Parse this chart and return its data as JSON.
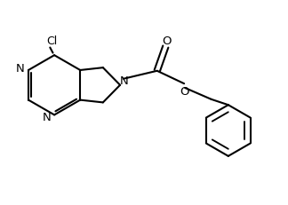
{
  "bg_color": "#ffffff",
  "line_color": "#000000",
  "line_width": 1.5,
  "font_size": 8.5,
  "figsize": [
    3.24,
    2.32
  ],
  "dpi": 100,
  "xlim": [
    0,
    10
  ],
  "ylim": [
    0,
    7.2
  ]
}
